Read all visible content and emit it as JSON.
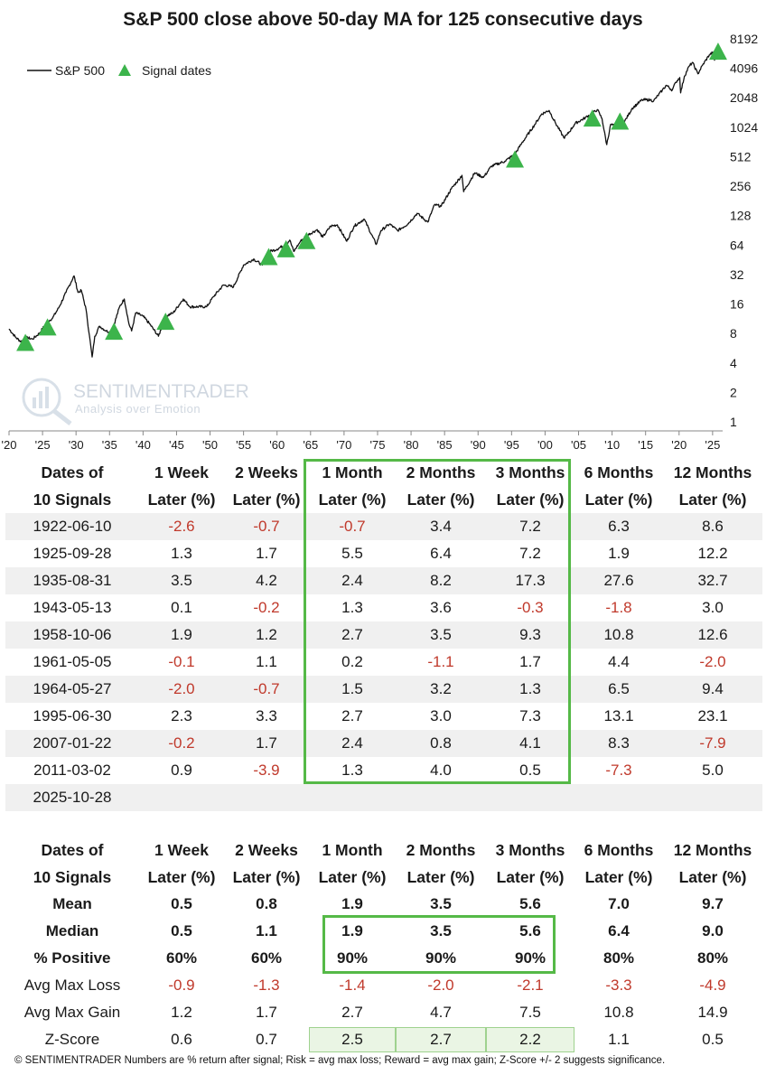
{
  "chart_data": {
    "type": "line",
    "title": "S&P 500 close above 50-day MA for 125 consecutive days",
    "y_scale": "log2",
    "ylim": [
      1,
      8192
    ],
    "y_ticks": [
      "8192",
      "4096",
      "2048",
      "1024",
      "512",
      "256",
      "128",
      "64",
      "32",
      "16",
      "8",
      "4",
      "2",
      "1"
    ],
    "x_range": [
      1920,
      2026.5
    ],
    "x_ticks": [
      "'20",
      "'25",
      "'30",
      "'35",
      "'40",
      "'45",
      "'50",
      "'55",
      "'60",
      "'65",
      "'70",
      "'75",
      "'80",
      "'85",
      "'90",
      "'95",
      "'00",
      "'05",
      "'10",
      "'15",
      "'20",
      "'25"
    ],
    "legend": {
      "position": "top-left",
      "line_label": "S&P 500",
      "marker_label": "Signal dates"
    },
    "colors": {
      "line": "#111111",
      "signal": "#3cb44b",
      "axis": "#888888"
    },
    "series": [
      {
        "name": "S&P 500",
        "points": [
          [
            1920.0,
            8.9
          ],
          [
            1921.0,
            7.3
          ],
          [
            1921.8,
            6.6
          ],
          [
            1922.5,
            7.3
          ],
          [
            1923.5,
            7.0
          ],
          [
            1924.5,
            8.0
          ],
          [
            1925.7,
            10.5
          ],
          [
            1926.5,
            11.5
          ],
          [
            1927.5,
            15
          ],
          [
            1928.5,
            21
          ],
          [
            1929.7,
            31
          ],
          [
            1930.3,
            21
          ],
          [
            1930.8,
            22
          ],
          [
            1931.5,
            14
          ],
          [
            1932.4,
            4.6
          ],
          [
            1932.8,
            7.5
          ],
          [
            1933.5,
            9.5
          ],
          [
            1934.5,
            8.5
          ],
          [
            1935.2,
            8.2
          ],
          [
            1935.6,
            9.5
          ],
          [
            1936.5,
            15
          ],
          [
            1937.2,
            18
          ],
          [
            1937.9,
            10
          ],
          [
            1938.3,
            8.5
          ],
          [
            1938.9,
            13
          ],
          [
            1940.0,
            12
          ],
          [
            1941.0,
            10
          ],
          [
            1942.3,
            7.5
          ],
          [
            1943.4,
            12
          ],
          [
            1944.5,
            13
          ],
          [
            1946.0,
            18
          ],
          [
            1947.0,
            15
          ],
          [
            1949.5,
            15
          ],
          [
            1950.5,
            19
          ],
          [
            1952.0,
            25
          ],
          [
            1953.5,
            24
          ],
          [
            1955.0,
            40
          ],
          [
            1956.5,
            46
          ],
          [
            1957.8,
            40
          ],
          [
            1958.8,
            55
          ],
          [
            1960.0,
            58
          ],
          [
            1961.4,
            66
          ],
          [
            1961.9,
            72
          ],
          [
            1962.5,
            55
          ],
          [
            1963.5,
            70
          ],
          [
            1964.4,
            80
          ],
          [
            1966.0,
            92
          ],
          [
            1966.8,
            77
          ],
          [
            1968.0,
            100
          ],
          [
            1969.0,
            103
          ],
          [
            1970.4,
            70
          ],
          [
            1971.5,
            100
          ],
          [
            1973.0,
            118
          ],
          [
            1974.8,
            65
          ],
          [
            1975.5,
            90
          ],
          [
            1976.8,
            105
          ],
          [
            1978.0,
            90
          ],
          [
            1979.5,
            105
          ],
          [
            1980.9,
            135
          ],
          [
            1982.5,
            110
          ],
          [
            1983.5,
            165
          ],
          [
            1984.5,
            160
          ],
          [
            1986.0,
            240
          ],
          [
            1987.6,
            330
          ],
          [
            1987.85,
            225
          ],
          [
            1989.5,
            350
          ],
          [
            1990.8,
            315
          ],
          [
            1992.0,
            410
          ],
          [
            1994.0,
            460
          ],
          [
            1995.5,
            545
          ],
          [
            1996.5,
            700
          ],
          [
            1998.5,
            1100
          ],
          [
            1999.5,
            1400
          ],
          [
            2000.6,
            1520
          ],
          [
            2001.5,
            1150
          ],
          [
            2002.8,
            800
          ],
          [
            2003.3,
            860
          ],
          [
            2004.5,
            1120
          ],
          [
            2006.0,
            1280
          ],
          [
            2007.1,
            1430
          ],
          [
            2007.8,
            1550
          ],
          [
            2008.5,
            1250
          ],
          [
            2009.2,
            680
          ],
          [
            2009.8,
            1100
          ],
          [
            2010.5,
            1050
          ],
          [
            2011.2,
            1330
          ],
          [
            2011.8,
            1150
          ],
          [
            2013.0,
            1600
          ],
          [
            2014.5,
            1950
          ],
          [
            2015.7,
            1950
          ],
          [
            2016.2,
            1900
          ],
          [
            2017.5,
            2450
          ],
          [
            2018.1,
            2750
          ],
          [
            2018.98,
            2450
          ],
          [
            2019.5,
            2950
          ],
          [
            2020.1,
            3300
          ],
          [
            2020.23,
            2300
          ],
          [
            2020.8,
            3400
          ],
          [
            2021.5,
            4300
          ],
          [
            2022.0,
            4700
          ],
          [
            2022.8,
            3600
          ],
          [
            2023.5,
            4400
          ],
          [
            2024.5,
            5600
          ],
          [
            2025.1,
            6000
          ],
          [
            2025.28,
            4950
          ],
          [
            2025.5,
            6200
          ],
          [
            2025.82,
            6890
          ]
        ]
      }
    ],
    "signals": [
      {
        "year": 1922.44,
        "value": 7.3
      },
      {
        "year": 1925.74,
        "value": 10.5
      },
      {
        "year": 1935.66,
        "value": 9.5
      },
      {
        "year": 1943.36,
        "value": 12
      },
      {
        "year": 1958.76,
        "value": 55
      },
      {
        "year": 1961.34,
        "value": 66
      },
      {
        "year": 1964.4,
        "value": 80
      },
      {
        "year": 1995.5,
        "value": 545
      },
      {
        "year": 2007.06,
        "value": 1430
      },
      {
        "year": 2011.17,
        "value": 1330
      },
      {
        "year": 2025.82,
        "value": 6890
      }
    ]
  },
  "watermark": {
    "brand": "SENTIMENTRADER",
    "tagline": "Analysis over Emotion"
  },
  "table1": {
    "header_line1": [
      "Dates of",
      "1 Week",
      "2 Weeks",
      "1 Month",
      "2 Months",
      "3 Months",
      "6 Months",
      "12 Months"
    ],
    "header_line2": [
      "10 Signals",
      "Later (%)",
      "Later (%)",
      "Later (%)",
      "Later (%)",
      "Later (%)",
      "Later (%)",
      "Later (%)"
    ],
    "rows": [
      [
        "1922-06-10",
        "-2.6",
        "-0.7",
        "-0.7",
        "3.4",
        "7.2",
        "6.3",
        "8.6"
      ],
      [
        "1925-09-28",
        "1.3",
        "1.7",
        "5.5",
        "6.4",
        "7.2",
        "1.9",
        "12.2"
      ],
      [
        "1935-08-31",
        "3.5",
        "4.2",
        "2.4",
        "8.2",
        "17.3",
        "27.6",
        "32.7"
      ],
      [
        "1943-05-13",
        "0.1",
        "-0.2",
        "1.3",
        "3.6",
        "-0.3",
        "-1.8",
        "3.0"
      ],
      [
        "1958-10-06",
        "1.9",
        "1.2",
        "2.7",
        "3.5",
        "9.3",
        "10.8",
        "12.6"
      ],
      [
        "1961-05-05",
        "-0.1",
        "1.1",
        "0.2",
        "-1.1",
        "1.7",
        "4.4",
        "-2.0"
      ],
      [
        "1964-05-27",
        "-2.0",
        "-0.7",
        "1.5",
        "3.2",
        "1.3",
        "6.5",
        "9.4"
      ],
      [
        "1995-06-30",
        "2.3",
        "3.3",
        "2.7",
        "3.0",
        "7.3",
        "13.1",
        "23.1"
      ],
      [
        "2007-01-22",
        "-0.2",
        "1.7",
        "2.4",
        "0.8",
        "4.1",
        "8.3",
        "-7.9"
      ],
      [
        "2011-03-02",
        "0.9",
        "-3.9",
        "1.3",
        "4.0",
        "0.5",
        "-7.3",
        "5.0"
      ],
      [
        "2025-10-28",
        "",
        "",
        "",
        "",
        "",
        "",
        ""
      ]
    ]
  },
  "table2": {
    "header_line1": [
      "Dates of",
      "1 Week",
      "2 Weeks",
      "1 Month",
      "2 Months",
      "3 Months",
      "6 Months",
      "12 Months"
    ],
    "header_line2": [
      "10 Signals",
      "Later (%)",
      "Later (%)",
      "Later (%)",
      "Later (%)",
      "Later (%)",
      "Later (%)",
      "Later (%)"
    ],
    "stats": [
      [
        "Mean",
        "0.5",
        "0.8",
        "1.9",
        "3.5",
        "5.6",
        "7.0",
        "9.7"
      ],
      [
        "Median",
        "0.5",
        "1.1",
        "1.9",
        "3.5",
        "5.6",
        "6.4",
        "9.0"
      ],
      [
        "% Positive",
        "60%",
        "60%",
        "90%",
        "90%",
        "90%",
        "80%",
        "80%"
      ],
      [
        "Avg Max Loss",
        "-0.9",
        "-1.3",
        "-1.4",
        "-2.0",
        "-2.1",
        "-3.3",
        "-4.9"
      ],
      [
        "Avg Max Gain",
        "1.2",
        "1.7",
        "2.7",
        "4.7",
        "7.5",
        "10.8",
        "14.9"
      ],
      [
        "Z-Score",
        "0.6",
        "0.7",
        "2.5",
        "2.7",
        "2.2",
        "1.1",
        "0.5"
      ]
    ]
  },
  "footer": "© SENTIMENTRADER  Numbers are % return after signal; Risk = avg max loss; Reward = avg max gain; Z-Score +/- 2 suggests significance."
}
